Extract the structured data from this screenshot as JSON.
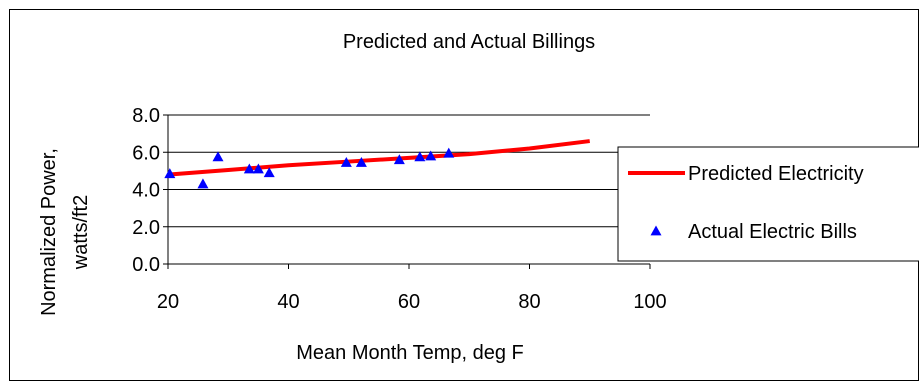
{
  "chart_data": {
    "type": "scatter",
    "title": "Predicted and Actual Billings",
    "xlabel": "Mean Month Temp, deg F",
    "ylabel_lines": [
      "Normalized Power,",
      "watts/ft2"
    ],
    "xlim": [
      20,
      100
    ],
    "ylim": [
      0,
      8
    ],
    "x_ticks": [
      "20",
      "40",
      "60",
      "80",
      "100"
    ],
    "y_ticks": [
      "0.0",
      "2.0",
      "4.0",
      "6.0",
      "8.0"
    ],
    "grid": "horizontal",
    "legend_position": "right",
    "series": [
      {
        "name": "Predicted Electricity",
        "type": "line",
        "color": "#ff0000",
        "x": [
          20,
          30,
          40,
          50,
          60,
          70,
          80,
          90
        ],
        "y": [
          4.8,
          5.05,
          5.3,
          5.5,
          5.7,
          5.9,
          6.2,
          6.6
        ]
      },
      {
        "name": "Actual Electric Bills",
        "type": "scatter",
        "marker": "triangle",
        "color": "#0000ff",
        "x": [
          20.3,
          25.8,
          28.3,
          33.5,
          35.0,
          36.8,
          49.6,
          52.1,
          58.4,
          61.8,
          63.6,
          66.6
        ],
        "y": [
          4.85,
          4.3,
          5.75,
          5.1,
          5.1,
          4.9,
          5.45,
          5.45,
          5.6,
          5.75,
          5.8,
          5.95
        ]
      }
    ]
  }
}
